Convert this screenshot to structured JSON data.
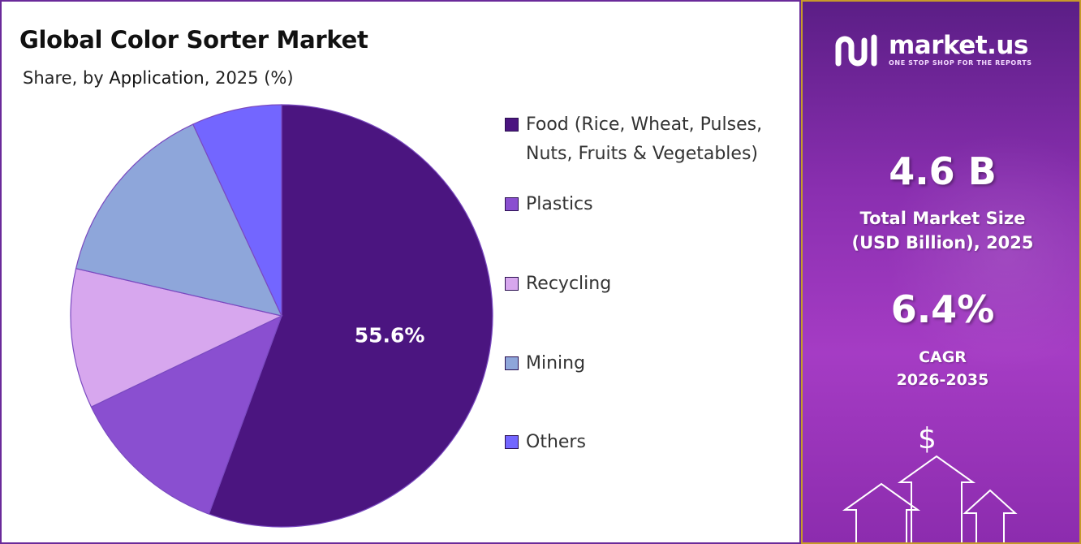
{
  "title": "Global Color Sorter Market",
  "subtitle": {
    "prefix": "Share, by ",
    "dimension": "Application",
    "suffix": ", 2025 (%)"
  },
  "chart_data": {
    "type": "pie",
    "title": "Global Color Sorter Market",
    "categories": [
      "Food (Rice, Wheat, Pulses, Nuts, Fruits & Vegetables)",
      "Plastics",
      "Recycling",
      "Mining",
      "Others"
    ],
    "values": [
      55.6,
      12.3,
      10.7,
      14.5,
      6.9
    ],
    "colors": [
      "#4b1580",
      "#8a4fd0",
      "#d7a7ee",
      "#8ea6da",
      "#7366ff"
    ],
    "data_labels": [
      "55.6%",
      "",
      "",
      "",
      ""
    ],
    "legend_placement": "right",
    "start_angle_deg": 0,
    "direction": "clockwise"
  },
  "legend": [
    {
      "label": "Food (Rice, Wheat, Pulses, Nuts, Fruits & Vegetables)",
      "color": "#4b1580"
    },
    {
      "label": "Plastics",
      "color": "#8a4fd0"
    },
    {
      "label": "Recycling",
      "color": "#d7a7ee"
    },
    {
      "label": "Mining",
      "color": "#8ea6da"
    },
    {
      "label": "Others",
      "color": "#7366ff"
    }
  ],
  "brand": {
    "name": "market.us",
    "tagline": "ONE STOP SHOP FOR THE REPORTS"
  },
  "stats": {
    "market_size_value": "4.6 B",
    "market_size_label_line1": "Total Market Size",
    "market_size_label_line2": "(USD Billion), 2025",
    "cagr_value": "6.4%",
    "cagr_label_line1": "CAGR",
    "cagr_label_line2": "2026-2035",
    "currency_symbol": "$"
  }
}
